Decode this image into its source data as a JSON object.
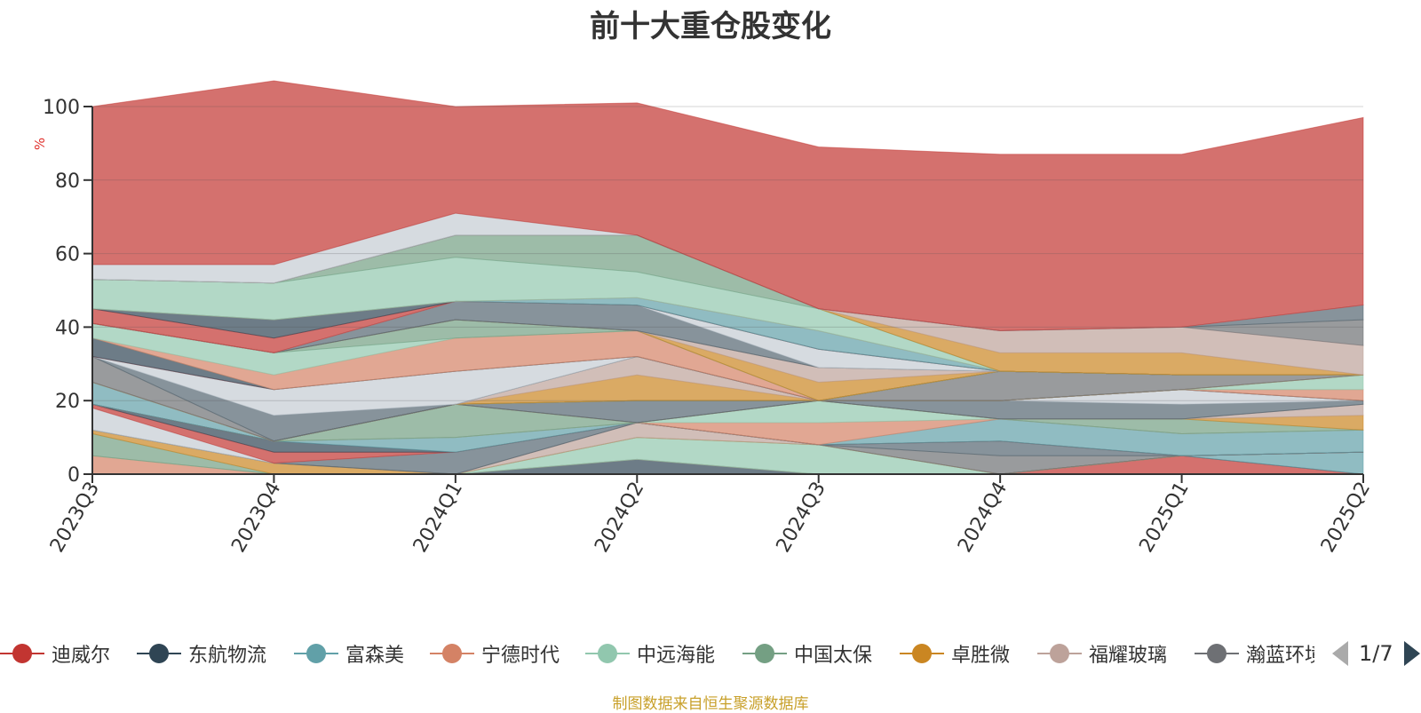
{
  "chart_data": {
    "type": "area",
    "title": "前十大重仓股变化",
    "ylabel": "%",
    "ylim": [
      0,
      100
    ],
    "yticks": [
      0,
      20,
      40,
      60,
      80,
      100
    ],
    "categories": [
      "2023Q3",
      "2023Q4",
      "2024Q1",
      "2024Q2",
      "2024Q3",
      "2024Q4",
      "2025Q1",
      "2025Q2"
    ],
    "grid": true,
    "series": [
      {
        "name": "迪威尔",
        "color": "#c23531",
        "values": [
          0,
          0,
          0,
          0,
          0,
          0,
          5,
          0
        ]
      },
      {
        "name": "东航物流",
        "color": "#2f4554",
        "values": [
          0,
          0,
          0,
          4,
          0,
          0,
          0,
          0
        ]
      },
      {
        "name": "富森美",
        "color": "#61a0a8",
        "values": [
          0,
          0,
          0,
          0,
          0,
          0,
          0,
          6
        ]
      },
      {
        "name": "宁德时代",
        "color": "#d48265",
        "values": [
          5,
          0,
          0,
          0,
          0,
          0,
          0,
          0
        ]
      },
      {
        "name": "中远海能",
        "color": "#91c7ae",
        "values": [
          0,
          0,
          0,
          6,
          8,
          0,
          0,
          0
        ]
      },
      {
        "name": "中国太保",
        "color": "#749f83",
        "values": [
          6,
          0,
          0,
          0,
          0,
          0,
          0,
          0
        ]
      },
      {
        "name": "卓胜微",
        "color": "#ca8622",
        "values": [
          1,
          3,
          0,
          0,
          0,
          0,
          0,
          0
        ]
      },
      {
        "name": "福耀玻璃",
        "color": "#bda29a",
        "values": [
          0,
          0,
          0,
          4,
          0,
          0,
          0,
          0
        ]
      },
      {
        "name": "瀚蓝环境",
        "color": "#6e7074",
        "values": [
          0,
          0,
          0,
          0,
          0,
          5,
          0,
          0
        ]
      },
      {
        "name": "",
        "color": "#546570",
        "values": [
          0,
          0,
          6,
          0,
          0,
          4,
          0,
          0
        ]
      },
      {
        "name": "",
        "color": "#c4ccd3",
        "values": [
          6,
          0,
          0,
          0,
          0,
          0,
          0,
          0
        ]
      },
      {
        "name": "",
        "color": "#c23531",
        "values": [
          1,
          3,
          0,
          0,
          0,
          0,
          0,
          0
        ]
      },
      {
        "name": "",
        "color": "#2f4554",
        "values": [
          0,
          3,
          0,
          0,
          0,
          0,
          0,
          0
        ]
      },
      {
        "name": "",
        "color": "#61a0a8",
        "values": [
          0,
          0,
          4,
          0,
          0,
          6,
          6,
          6
        ]
      },
      {
        "name": "",
        "color": "#d48265",
        "values": [
          0,
          0,
          0,
          0,
          6,
          0,
          0,
          0
        ]
      },
      {
        "name": "",
        "color": "#91c7ae",
        "values": [
          0,
          0,
          0,
          0,
          6,
          0,
          0,
          0
        ]
      },
      {
        "name": "",
        "color": "#749f83",
        "values": [
          0,
          0,
          9,
          0,
          0,
          0,
          4,
          0
        ]
      },
      {
        "name": "",
        "color": "#ca8622",
        "values": [
          0,
          0,
          0,
          0,
          0,
          0,
          0,
          4
        ]
      },
      {
        "name": "",
        "color": "#bda29a",
        "values": [
          0,
          0,
          0,
          0,
          0,
          0,
          0,
          3
        ]
      },
      {
        "name": "",
        "color": "#6e7074",
        "values": [
          0,
          0,
          0,
          0,
          0,
          0,
          0,
          0
        ]
      },
      {
        "name": "",
        "color": "#546570",
        "values": [
          0,
          0,
          0,
          6,
          0,
          5,
          4,
          1
        ]
      },
      {
        "name": "",
        "color": "#c4ccd3",
        "values": [
          0,
          0,
          0,
          0,
          0,
          0,
          4,
          0
        ]
      },
      {
        "name": "",
        "color": "#c23531",
        "values": [
          0,
          0,
          0,
          0,
          0,
          0,
          0,
          0
        ]
      },
      {
        "name": "",
        "color": "#2f4554",
        "values": [
          0,
          0,
          0,
          0,
          0,
          0,
          0,
          0
        ]
      },
      {
        "name": "",
        "color": "#61a0a8",
        "values": [
          6,
          0,
          0,
          0,
          0,
          0,
          0,
          0
        ]
      },
      {
        "name": "",
        "color": "#d48265",
        "values": [
          0,
          0,
          0,
          0,
          0,
          0,
          0,
          3
        ]
      },
      {
        "name": "",
        "color": "#91c7ae",
        "values": [
          0,
          0,
          0,
          0,
          0,
          0,
          0,
          4
        ]
      },
      {
        "name": "",
        "color": "#749f83",
        "values": [
          0,
          0,
          0,
          0,
          0,
          0,
          0,
          0
        ]
      },
      {
        "name": "",
        "color": "#ca8622",
        "values": [
          0,
          0,
          0,
          7,
          0,
          0,
          0,
          0
        ]
      },
      {
        "name": "",
        "color": "#bda29a",
        "values": [
          0,
          0,
          0,
          5,
          0,
          0,
          0,
          0
        ]
      },
      {
        "name": "",
        "color": "#6e7074",
        "values": [
          7,
          0,
          0,
          0,
          0,
          8,
          4,
          0
        ]
      },
      {
        "name": "",
        "color": "#546570",
        "values": [
          0,
          7,
          0,
          0,
          0,
          0,
          0,
          0
        ]
      },
      {
        "name": "",
        "color": "#c4ccd3",
        "values": [
          0,
          7,
          9,
          0,
          0,
          0,
          0,
          0
        ]
      },
      {
        "name": "",
        "color": "#c23531",
        "values": [
          0,
          0,
          0,
          0,
          0,
          0,
          0,
          0
        ]
      },
      {
        "name": "",
        "color": "#2f4554",
        "values": [
          5,
          0,
          0,
          0,
          0,
          0,
          0,
          0
        ]
      },
      {
        "name": "",
        "color": "#61a0a8",
        "values": [
          0,
          0,
          0,
          0,
          0,
          0,
          0,
          0
        ]
      },
      {
        "name": "",
        "color": "#d48265",
        "values": [
          0,
          4,
          9,
          7,
          0,
          0,
          0,
          0
        ]
      },
      {
        "name": "",
        "color": "#91c7ae",
        "values": [
          4,
          6,
          0,
          0,
          0,
          0,
          0,
          0
        ]
      },
      {
        "name": "",
        "color": "#749f83",
        "values": [
          0,
          0,
          5,
          0,
          0,
          0,
          0,
          0
        ]
      },
      {
        "name": "",
        "color": "#ca8622",
        "values": [
          0,
          0,
          0,
          0,
          5,
          0,
          0,
          0
        ]
      },
      {
        "name": "",
        "color": "#bda29a",
        "values": [
          0,
          0,
          0,
          0,
          4,
          0,
          0,
          0
        ]
      },
      {
        "name": "",
        "color": "#6e7074",
        "values": [
          0,
          0,
          0,
          0,
          0,
          0,
          0,
          0
        ]
      },
      {
        "name": "",
        "color": "#546570",
        "values": [
          0,
          0,
          5,
          7,
          0,
          0,
          0,
          0
        ]
      },
      {
        "name": "",
        "color": "#c4ccd3",
        "values": [
          0,
          0,
          0,
          0,
          5,
          0,
          0,
          0
        ]
      },
      {
        "name": "",
        "color": "#c23531",
        "values": [
          4,
          4,
          0,
          0,
          0,
          0,
          0,
          0
        ]
      },
      {
        "name": "",
        "color": "#2f4554",
        "values": [
          0,
          5,
          0,
          0,
          0,
          0,
          0,
          0
        ]
      },
      {
        "name": "",
        "color": "#61a0a8",
        "values": [
          0,
          0,
          0,
          2,
          5,
          0,
          0,
          0
        ]
      },
      {
        "name": "",
        "color": "#d48265",
        "values": [
          0,
          0,
          0,
          0,
          0,
          0,
          0,
          0
        ]
      },
      {
        "name": "",
        "color": "#91c7ae",
        "values": [
          8,
          10,
          12,
          7,
          6,
          0,
          0,
          0
        ]
      },
      {
        "name": "",
        "color": "#749f83",
        "values": [
          0,
          0,
          6,
          10,
          0,
          0,
          0,
          0
        ]
      },
      {
        "name": "",
        "color": "#ca8622",
        "values": [
          0,
          0,
          0,
          0,
          0,
          5,
          6,
          0
        ]
      },
      {
        "name": "",
        "color": "#bda29a",
        "values": [
          0,
          0,
          0,
          0,
          0,
          6,
          7,
          8
        ]
      },
      {
        "name": "",
        "color": "#6e7074",
        "values": [
          0,
          0,
          0,
          0,
          0,
          0,
          0,
          7
        ]
      },
      {
        "name": "",
        "color": "#546570",
        "values": [
          0,
          0,
          0,
          0,
          0,
          0,
          0,
          4
        ]
      },
      {
        "name": "",
        "color": "#c4ccd3",
        "values": [
          4,
          5,
          6,
          0,
          0,
          0,
          0,
          0
        ]
      },
      {
        "name": "",
        "color": "#c23531",
        "values": [
          43,
          50,
          29,
          36,
          44,
          48,
          47,
          51
        ]
      }
    ]
  },
  "legend": {
    "visible_count": 9,
    "page": "1/7"
  },
  "source_note": "制图数据来自恒生聚源数据库"
}
